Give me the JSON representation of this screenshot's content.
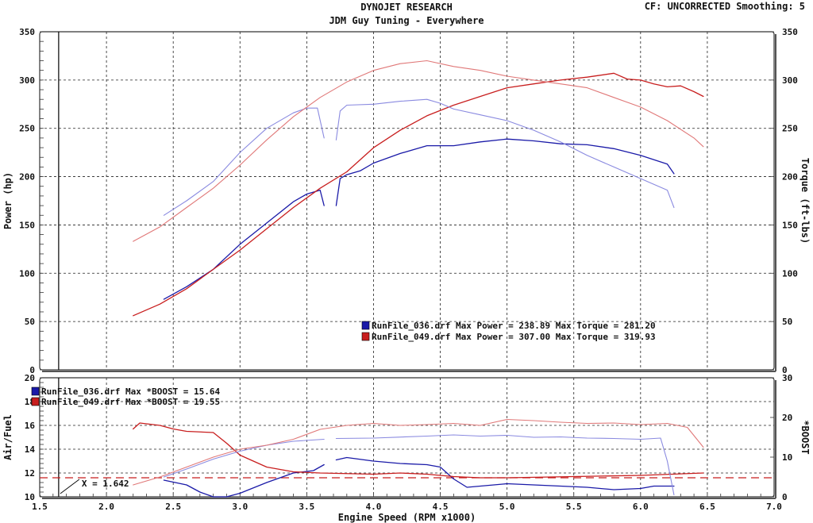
{
  "header": {
    "title": "DYNOJET RESEARCH",
    "subtitle": "JDM Guy Tuning - Everywhere",
    "cf_info": "CF: UNCORRECTED  Smoothing: 5"
  },
  "chart_data": [
    {
      "type": "line",
      "name": "power-torque",
      "xlim": [
        1.5,
        7.0
      ],
      "ylim": [
        0,
        350
      ],
      "ylim_right": [
        0,
        350
      ],
      "ylabel": "Power (hp)",
      "ylabel_right": "Torque (ft-lbs)",
      "yticks": [
        "0",
        "50",
        "100",
        "150",
        "200",
        "250",
        "300",
        "350"
      ],
      "yticks_right": [
        "0",
        "50",
        "100",
        "150",
        "200",
        "250",
        "300",
        "350"
      ],
      "grid": true,
      "cursor_x": 1.642,
      "legend": [
        {
          "text": "RunFile_036.drf Max Power = 238.89    Max Torque = 281.20",
          "color": "#1a1aa8"
        },
        {
          "text": "RunFile_049.drf Max Power = 307.00    Max Torque = 319.93",
          "color": "#c81e1e"
        }
      ],
      "series": [
        {
          "name": "RunFile_036 Power",
          "color": "#1a1aa8",
          "width": 1.3,
          "segments": [
            [
              [
                2.43,
                73
              ],
              [
                2.6,
                86
              ],
              [
                2.8,
                104
              ],
              [
                3.0,
                130
              ],
              [
                3.2,
                152
              ],
              [
                3.4,
                174
              ],
              [
                3.5,
                182
              ],
              [
                3.6,
                186
              ],
              [
                3.63,
                170
              ]
            ],
            [
              [
                3.72,
                170
              ],
              [
                3.75,
                198
              ],
              [
                3.8,
                202
              ],
              [
                3.9,
                206
              ],
              [
                4.0,
                214
              ],
              [
                4.2,
                224
              ],
              [
                4.4,
                232
              ],
              [
                4.6,
                232
              ],
              [
                4.8,
                236
              ],
              [
                5.0,
                238.9
              ],
              [
                5.2,
                237
              ],
              [
                5.4,
                234
              ],
              [
                5.6,
                233
              ],
              [
                5.8,
                229
              ],
              [
                6.0,
                222
              ],
              [
                6.2,
                213
              ],
              [
                6.25,
                203
              ]
            ]
          ]
        },
        {
          "name": "RunFile_049 Power",
          "color": "#c81e1e",
          "width": 1.3,
          "segments": [
            [
              [
                2.2,
                56
              ],
              [
                2.4,
                68
              ],
              [
                2.6,
                84
              ],
              [
                2.8,
                104
              ],
              [
                3.0,
                124
              ],
              [
                3.2,
                146
              ],
              [
                3.4,
                168
              ],
              [
                3.6,
                188
              ],
              [
                3.8,
                205
              ],
              [
                4.0,
                230
              ],
              [
                4.2,
                248
              ],
              [
                4.4,
                263
              ],
              [
                4.6,
                274
              ],
              [
                4.8,
                283
              ],
              [
                5.0,
                292
              ],
              [
                5.2,
                296
              ],
              [
                5.4,
                300
              ],
              [
                5.6,
                303
              ],
              [
                5.8,
                307
              ],
              [
                5.9,
                301
              ],
              [
                6.0,
                300
              ],
              [
                6.1,
                296
              ],
              [
                6.2,
                293
              ],
              [
                6.3,
                294
              ],
              [
                6.4,
                288
              ],
              [
                6.47,
                283
              ]
            ]
          ]
        },
        {
          "name": "RunFile_036 Torque",
          "color": "#8a8ae0",
          "width": 1.1,
          "segments": [
            [
              [
                2.43,
                160
              ],
              [
                2.6,
                175
              ],
              [
                2.8,
                195
              ],
              [
                3.0,
                225
              ],
              [
                3.2,
                250
              ],
              [
                3.4,
                266
              ],
              [
                3.5,
                271
              ],
              [
                3.58,
                271
              ],
              [
                3.63,
                240
              ]
            ],
            [
              [
                3.72,
                238
              ],
              [
                3.75,
                268
              ],
              [
                3.8,
                274
              ],
              [
                4.0,
                275
              ],
              [
                4.2,
                278
              ],
              [
                4.4,
                280
              ],
              [
                4.5,
                276
              ],
              [
                4.6,
                270
              ],
              [
                4.8,
                264
              ],
              [
                5.0,
                258
              ],
              [
                5.2,
                248
              ],
              [
                5.4,
                236
              ],
              [
                5.6,
                222
              ],
              [
                5.8,
                210
              ],
              [
                6.0,
                198
              ],
              [
                6.2,
                186
              ],
              [
                6.25,
                168
              ]
            ]
          ]
        },
        {
          "name": "RunFile_049 Torque",
          "color": "#e07878",
          "width": 1.1,
          "segments": [
            [
              [
                2.2,
                133
              ],
              [
                2.4,
                148
              ],
              [
                2.6,
                168
              ],
              [
                2.8,
                188
              ],
              [
                3.0,
                212
              ],
              [
                3.2,
                238
              ],
              [
                3.4,
                262
              ],
              [
                3.6,
                282
              ],
              [
                3.8,
                298
              ],
              [
                4.0,
                310
              ],
              [
                4.2,
                317
              ],
              [
                4.4,
                320
              ],
              [
                4.6,
                314
              ],
              [
                4.8,
                310
              ],
              [
                5.0,
                304
              ],
              [
                5.2,
                300
              ],
              [
                5.4,
                296
              ],
              [
                5.6,
                292
              ],
              [
                5.8,
                282
              ],
              [
                6.0,
                272
              ],
              [
                6.2,
                258
              ],
              [
                6.4,
                240
              ],
              [
                6.47,
                231
              ]
            ]
          ]
        }
      ]
    },
    {
      "type": "line",
      "name": "airfuel-boost",
      "xlim": [
        1.5,
        7.0
      ],
      "ylim": [
        10,
        20
      ],
      "ylim_right": [
        0,
        30
      ],
      "xlabel": "Engine Speed (RPM x1000)",
      "ylabel": "Air/Fuel",
      "ylabel_right": "*BOOST",
      "xticks": [
        "1.5",
        "2.0",
        "2.5",
        "3.0",
        "3.5",
        "4.0",
        "4.5",
        "5.0",
        "5.5",
        "6.0",
        "6.5",
        "7.0"
      ],
      "yticks": [
        "10",
        "12",
        "14",
        "16",
        "18",
        "20"
      ],
      "yticks_right": [
        "0",
        "10",
        "20",
        "30"
      ],
      "grid": true,
      "reference_afr": 11.6,
      "cursor_label": "X = 1.642",
      "legend": [
        {
          "text": "RunFile_036.drf Max *BOOST = 15.64",
          "color": "#1a1aa8"
        },
        {
          "text": "RunFile_049.drf Max *BOOST = 19.55",
          "color": "#c81e1e"
        }
      ],
      "series": [
        {
          "name": "RunFile_036 Air/Fuel",
          "color": "#1a1aa8",
          "width": 1.3,
          "segments": [
            [
              [
                2.43,
                11.4
              ],
              [
                2.6,
                11.0
              ],
              [
                2.7,
                10.4
              ],
              [
                2.8,
                10.0
              ],
              [
                2.9,
                10.0
              ],
              [
                3.0,
                10.3
              ],
              [
                3.2,
                11.2
              ],
              [
                3.4,
                12.0
              ],
              [
                3.55,
                12.2
              ],
              [
                3.63,
                12.7
              ]
            ],
            [
              [
                3.72,
                13.1
              ],
              [
                3.8,
                13.3
              ],
              [
                4.0,
                13.0
              ],
              [
                4.2,
                12.8
              ],
              [
                4.4,
                12.7
              ],
              [
                4.5,
                12.5
              ],
              [
                4.6,
                11.5
              ],
              [
                4.7,
                10.8
              ],
              [
                4.8,
                10.9
              ],
              [
                5.0,
                11.1
              ],
              [
                5.2,
                11.0
              ],
              [
                5.4,
                10.9
              ],
              [
                5.6,
                10.8
              ],
              [
                5.8,
                10.6
              ],
              [
                6.0,
                10.7
              ],
              [
                6.1,
                10.9
              ],
              [
                6.25,
                10.9
              ]
            ]
          ]
        },
        {
          "name": "RunFile_049 Air/Fuel",
          "color": "#c81e1e",
          "width": 1.3,
          "segments": [
            [
              [
                2.2,
                15.7
              ],
              [
                2.25,
                16.2
              ],
              [
                2.4,
                16.0
              ],
              [
                2.5,
                15.7
              ],
              [
                2.6,
                15.5
              ],
              [
                2.8,
                15.4
              ],
              [
                2.9,
                14.5
              ],
              [
                3.0,
                13.5
              ],
              [
                3.2,
                12.5
              ],
              [
                3.4,
                12.1
              ],
              [
                3.6,
                12.0
              ],
              [
                4.0,
                11.9
              ],
              [
                4.2,
                12.0
              ],
              [
                4.4,
                11.9
              ],
              [
                4.6,
                11.7
              ],
              [
                4.8,
                11.6
              ],
              [
                5.0,
                11.6
              ],
              [
                5.5,
                11.7
              ],
              [
                6.0,
                11.8
              ],
              [
                6.47,
                12.0
              ]
            ]
          ]
        },
        {
          "name": "RunFile_036 *BOOST",
          "color": "#8a8ae0",
          "width": 1.1,
          "axis": "right",
          "segments": [
            [
              [
                2.43,
                5.0
              ],
              [
                2.6,
                7.0
              ],
              [
                2.8,
                9.5
              ],
              [
                3.0,
                11.5
              ],
              [
                3.2,
                13.0
              ],
              [
                3.4,
                14.0
              ],
              [
                3.63,
                14.5
              ]
            ],
            [
              [
                3.72,
                14.7
              ],
              [
                4.0,
                14.8
              ],
              [
                4.4,
                15.3
              ],
              [
                4.6,
                15.6
              ],
              [
                4.8,
                15.3
              ],
              [
                5.0,
                15.5
              ],
              [
                5.2,
                15.0
              ],
              [
                5.4,
                15.1
              ],
              [
                5.6,
                14.8
              ],
              [
                5.8,
                14.7
              ],
              [
                6.0,
                14.5
              ],
              [
                6.15,
                14.8
              ],
              [
                6.2,
                9.0
              ],
              [
                6.25,
                0.5
              ]
            ]
          ]
        },
        {
          "name": "RunFile_049 *BOOST",
          "color": "#e07878",
          "width": 1.1,
          "axis": "right",
          "segments": [
            [
              [
                2.2,
                3.0
              ],
              [
                2.4,
                5.0
              ],
              [
                2.6,
                7.5
              ],
              [
                2.8,
                10.0
              ],
              [
                3.0,
                12.0
              ],
              [
                3.2,
                13.0
              ],
              [
                3.4,
                14.5
              ],
              [
                3.6,
                17.0
              ],
              [
                3.8,
                18.0
              ],
              [
                4.0,
                18.5
              ],
              [
                4.2,
                18.0
              ],
              [
                4.4,
                18.2
              ],
              [
                4.6,
                18.5
              ],
              [
                4.8,
                18.0
              ],
              [
                5.0,
                19.5
              ],
              [
                5.2,
                19.2
              ],
              [
                5.4,
                18.8
              ],
              [
                5.6,
                18.5
              ],
              [
                5.8,
                18.6
              ],
              [
                6.0,
                18.2
              ],
              [
                6.2,
                18.5
              ],
              [
                6.35,
                17.5
              ],
              [
                6.47,
                12.5
              ]
            ]
          ]
        }
      ]
    }
  ]
}
